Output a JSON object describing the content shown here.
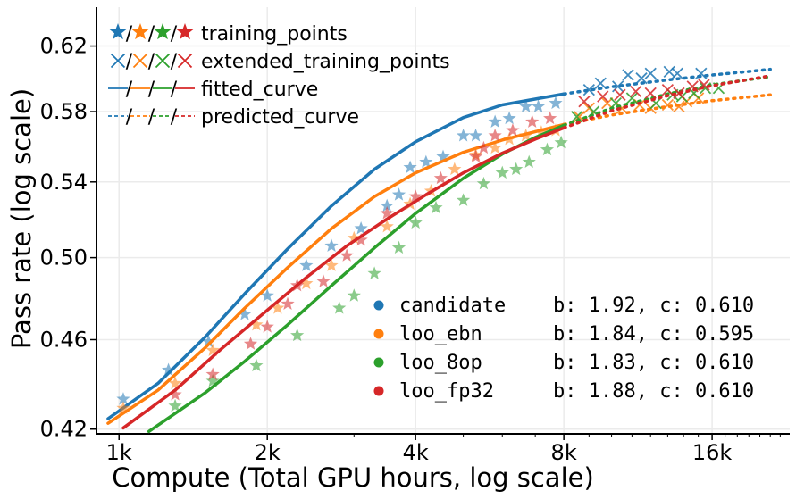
{
  "chart_data": {
    "type": "scatter",
    "xlabel": "Compute (Total GPU hours, log scale)",
    "ylabel": "Pass rate (log scale)",
    "x_scale": "log",
    "y_scale": "log",
    "xlim": [
      900,
      23000
    ],
    "ylim": [
      0.418,
      0.645
    ],
    "grid": true,
    "x_ticks": [
      {
        "value": 1000,
        "label": "1k"
      },
      {
        "value": 2000,
        "label": "2k"
      },
      {
        "value": 4000,
        "label": "4k"
      },
      {
        "value": 8000,
        "label": "8k"
      },
      {
        "value": 16000,
        "label": "16k"
      }
    ],
    "y_ticks": [
      {
        "value": 0.42,
        "label": "0.42"
      },
      {
        "value": 0.46,
        "label": "0.46"
      },
      {
        "value": 0.5,
        "label": "0.50"
      },
      {
        "value": 0.54,
        "label": "0.54"
      },
      {
        "value": 0.58,
        "label": "0.58"
      },
      {
        "value": 0.62,
        "label": "0.62"
      }
    ],
    "marker_legend": {
      "position": "top-left",
      "entries": [
        {
          "marker": "star",
          "label": "training_points"
        },
        {
          "marker": "x",
          "label": "extended_training_points"
        },
        {
          "marker": "solid-line",
          "label": "fitted_curve"
        },
        {
          "marker": "dashed-line",
          "label": "predicted_curve"
        }
      ]
    },
    "series_legend": {
      "position": "bottom-right",
      "entries": [
        {
          "name": "candidate",
          "params": "b: 1.92, c: 0.610"
        },
        {
          "name": "loo_ebn",
          "params": "b: 1.84, c: 0.595"
        },
        {
          "name": "loo_8op",
          "params": "b: 1.83, c: 0.610"
        },
        {
          "name": "loo_fp32",
          "params": "b: 1.88, c: 0.610"
        }
      ]
    },
    "fit_cutoff_x": 8000,
    "series": [
      {
        "name": "candidate",
        "color": "#1f77b4",
        "b": 1.92,
        "c": 0.61,
        "curve_points": [
          [
            950,
            0.4245
          ],
          [
            1200,
            0.44
          ],
          [
            1500,
            0.4615
          ],
          [
            1800,
            0.482
          ],
          [
            2200,
            0.5045
          ],
          [
            2700,
            0.527
          ],
          [
            3300,
            0.547
          ],
          [
            4000,
            0.5625
          ],
          [
            5000,
            0.5765
          ],
          [
            6000,
            0.584
          ],
          [
            8000,
            0.5905
          ],
          [
            10000,
            0.5948
          ],
          [
            13000,
            0.599
          ],
          [
            16000,
            0.602
          ],
          [
            21000,
            0.6055
          ]
        ],
        "training_points": [
          [
            1020,
            0.433
          ],
          [
            1260,
            0.446
          ],
          [
            1520,
            0.459
          ],
          [
            1800,
            0.472
          ],
          [
            2000,
            0.481
          ],
          [
            2400,
            0.496
          ],
          [
            2700,
            0.506
          ],
          [
            3100,
            0.515
          ],
          [
            3500,
            0.527
          ],
          [
            3700,
            0.533
          ],
          [
            3900,
            0.548
          ],
          [
            4200,
            0.551
          ],
          [
            4550,
            0.554
          ],
          [
            5000,
            0.566
          ],
          [
            5300,
            0.566
          ],
          [
            5800,
            0.574
          ],
          [
            6200,
            0.576
          ],
          [
            6700,
            0.583
          ],
          [
            7100,
            0.583
          ],
          [
            7700,
            0.585
          ]
        ],
        "extended_points": [
          [
            9000,
            0.593
          ],
          [
            9500,
            0.597
          ],
          [
            10300,
            0.595
          ],
          [
            10800,
            0.602
          ],
          [
            11500,
            0.6
          ],
          [
            12000,
            0.603
          ],
          [
            13100,
            0.604
          ],
          [
            13600,
            0.603
          ],
          [
            15200,
            0.603
          ]
        ]
      },
      {
        "name": "loo_ebn",
        "color": "#ff7f0e",
        "b": 1.84,
        "c": 0.595,
        "curve_points": [
          [
            950,
            0.4225
          ],
          [
            1200,
            0.437
          ],
          [
            1500,
            0.4565
          ],
          [
            1800,
            0.475
          ],
          [
            2200,
            0.495
          ],
          [
            2700,
            0.515
          ],
          [
            3300,
            0.532
          ],
          [
            4000,
            0.545
          ],
          [
            5000,
            0.5565
          ],
          [
            6000,
            0.5635
          ],
          [
            8000,
            0.5725
          ],
          [
            10000,
            0.578
          ],
          [
            13000,
            0.583
          ],
          [
            16000,
            0.5865
          ],
          [
            21000,
            0.59
          ]
        ],
        "training_points": [
          [
            1020,
            0.429
          ],
          [
            1300,
            0.44
          ],
          [
            1550,
            0.455
          ],
          [
            1900,
            0.467
          ],
          [
            2100,
            0.475
          ],
          [
            2400,
            0.487
          ],
          [
            2700,
            0.496
          ],
          [
            3000,
            0.51
          ],
          [
            3500,
            0.516
          ],
          [
            3900,
            0.528
          ],
          [
            4300,
            0.535
          ],
          [
            4800,
            0.547
          ],
          [
            5300,
            0.555
          ],
          [
            5800,
            0.559
          ],
          [
            6200,
            0.564
          ],
          [
            6700,
            0.566
          ],
          [
            7200,
            0.568
          ],
          [
            7700,
            0.569
          ]
        ],
        "extended_points": [
          [
            8600,
            0.577
          ],
          [
            9000,
            0.582
          ],
          [
            9800,
            0.585
          ],
          [
            10500,
            0.582
          ],
          [
            11400,
            0.584
          ],
          [
            12000,
            0.582
          ],
          [
            13000,
            0.584
          ],
          [
            13700,
            0.583
          ],
          [
            14200,
            0.586
          ],
          [
            15000,
            0.588
          ]
        ]
      },
      {
        "name": "loo_8op",
        "color": "#2ca02c",
        "b": 1.83,
        "c": 0.61,
        "curve_points": [
          [
            1150,
            0.419
          ],
          [
            1500,
            0.436
          ],
          [
            1800,
            0.45
          ],
          [
            2200,
            0.467
          ],
          [
            2700,
            0.486
          ],
          [
            3300,
            0.505
          ],
          [
            4000,
            0.523
          ],
          [
            5000,
            0.542
          ],
          [
            6000,
            0.5555
          ],
          [
            7000,
            0.565
          ],
          [
            8000,
            0.572
          ],
          [
            10000,
            0.582
          ],
          [
            13000,
            0.5905
          ],
          [
            16000,
            0.596
          ],
          [
            21000,
            0.601
          ]
        ],
        "training_points": [
          [
            1300,
            0.43
          ],
          [
            1550,
            0.441
          ],
          [
            1900,
            0.448
          ],
          [
            2300,
            0.462
          ],
          [
            2800,
            0.475
          ],
          [
            3000,
            0.481
          ],
          [
            3300,
            0.492
          ],
          [
            3700,
            0.505
          ],
          [
            4000,
            0.518
          ],
          [
            4400,
            0.526
          ],
          [
            5000,
            0.53
          ],
          [
            5500,
            0.539
          ],
          [
            6000,
            0.545
          ],
          [
            6400,
            0.547
          ],
          [
            6800,
            0.551
          ],
          [
            7400,
            0.558
          ],
          [
            7900,
            0.562
          ]
        ],
        "extended_points": [
          [
            8500,
            0.577
          ],
          [
            9200,
            0.58
          ],
          [
            10200,
            0.585
          ],
          [
            11000,
            0.588
          ],
          [
            12300,
            0.585
          ],
          [
            13300,
            0.59
          ],
          [
            13900,
            0.589
          ],
          [
            14700,
            0.591
          ],
          [
            15500,
            0.594
          ],
          [
            16500,
            0.594
          ]
        ]
      },
      {
        "name": "loo_fp32",
        "color": "#d62728",
        "b": 1.88,
        "c": 0.61,
        "curve_points": [
          [
            1020,
            0.4205
          ],
          [
            1300,
            0.437
          ],
          [
            1600,
            0.455
          ],
          [
            2000,
            0.474
          ],
          [
            2400,
            0.49
          ],
          [
            2900,
            0.506
          ],
          [
            3500,
            0.52
          ],
          [
            4200,
            0.533
          ],
          [
            5000,
            0.545
          ],
          [
            6000,
            0.556
          ],
          [
            7000,
            0.564
          ],
          [
            8000,
            0.5705
          ],
          [
            10000,
            0.5805
          ],
          [
            13000,
            0.5895
          ],
          [
            16000,
            0.5955
          ],
          [
            21000,
            0.6015
          ]
        ],
        "training_points": [
          [
            1550,
            0.444
          ],
          [
            1300,
            0.435
          ],
          [
            1850,
            0.458
          ],
          [
            2000,
            0.466
          ],
          [
            2200,
            0.477
          ],
          [
            2300,
            0.486
          ],
          [
            2600,
            0.488
          ],
          [
            2900,
            0.501
          ],
          [
            3100,
            0.509
          ],
          [
            3500,
            0.523
          ],
          [
            4000,
            0.532
          ],
          [
            4500,
            0.542
          ],
          [
            5300,
            0.554
          ],
          [
            5500,
            0.559
          ],
          [
            5800,
            0.566
          ],
          [
            6300,
            0.569
          ],
          [
            6900,
            0.574
          ],
          [
            7500,
            0.576
          ]
        ],
        "extended_points": [
          [
            8800,
            0.586
          ],
          [
            9600,
            0.589
          ],
          [
            10400,
            0.59
          ],
          [
            11200,
            0.592
          ],
          [
            12000,
            0.591
          ],
          [
            13000,
            0.593
          ],
          [
            13700,
            0.591
          ],
          [
            14600,
            0.595
          ],
          [
            15400,
            0.596
          ]
        ]
      }
    ]
  }
}
